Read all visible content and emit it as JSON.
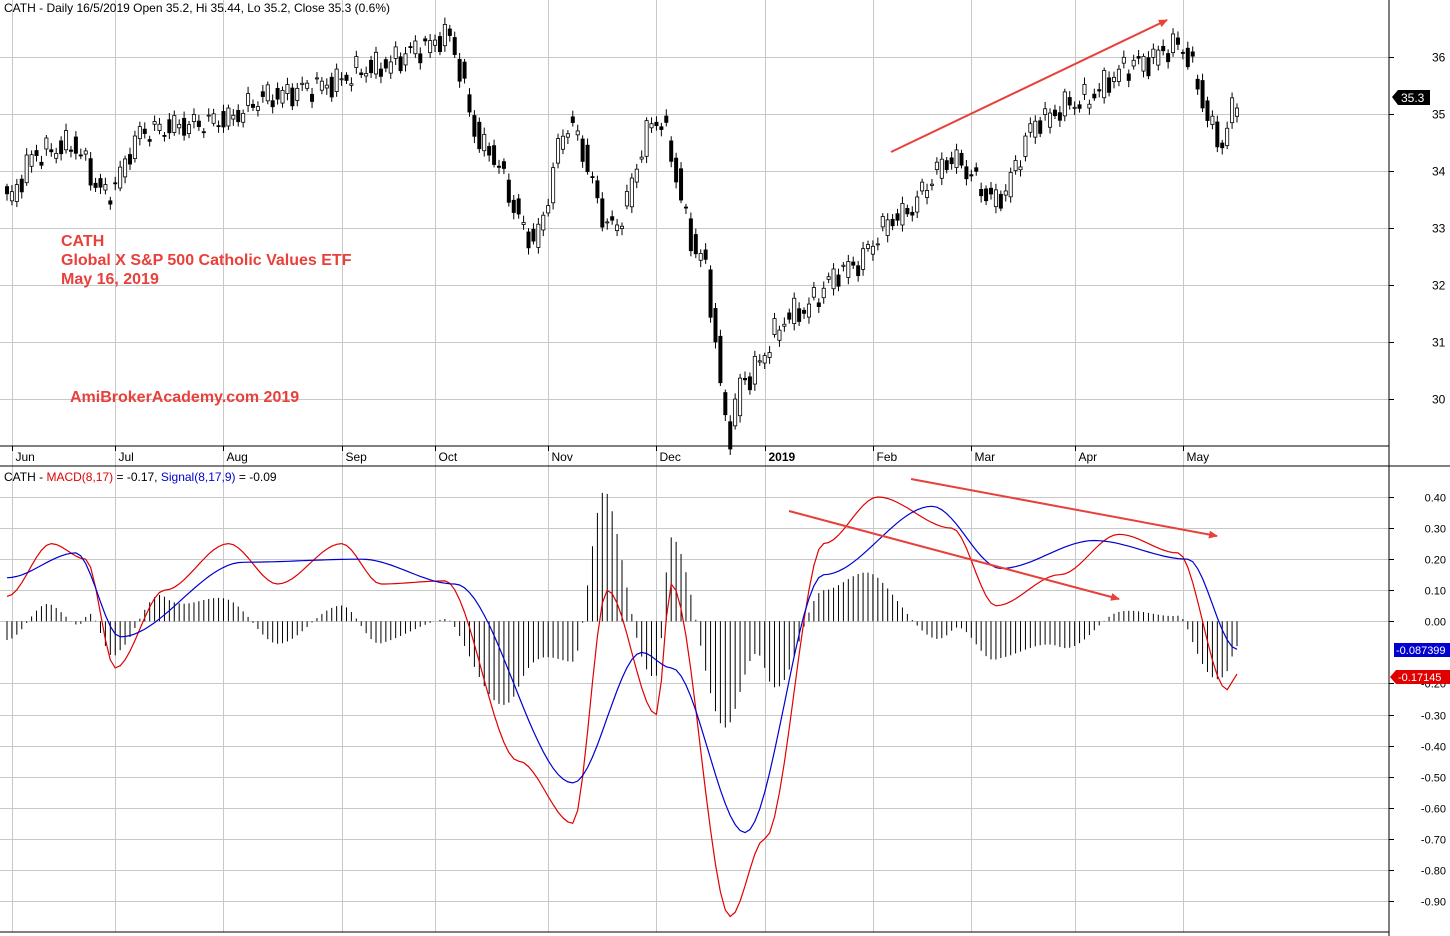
{
  "header": {
    "price_title": "CATH - Daily 16/5/2019 Open 35.2, Hi 35.44, Lo 35.2, Close 35.3 (0.6%)",
    "macd_symbol": "CATH - ",
    "macd_label": "MACD(8,17)",
    "macd_value": " = -0.17, ",
    "signal_label": "Signal(8,17,9)",
    "signal_value": " = -0.09"
  },
  "annotations": {
    "symbol": "CATH",
    "name": "Global X S&P 500 Catholic Values ETF",
    "date": "May 16, 2019",
    "watermark": "AmiBrokerAcademy.com 2019"
  },
  "colors": {
    "macd": "#e00000",
    "signal": "#0000d0",
    "histogram": "#000000",
    "arrow": "#e8403a",
    "grid": "#c8c8c8"
  },
  "chart_data": [
    {
      "type": "candlestick",
      "title": "CATH - Daily 16/5/2019 Open 35.2, Hi 35.44, Lo 35.2, Close 35.3 (0.6%)",
      "x_labels": [
        "Jun",
        "Jul",
        "Aug",
        "Sep",
        "Oct",
        "Nov",
        "Dec",
        "2019",
        "Feb",
        "Mar",
        "Apr",
        "May"
      ],
      "y_ticks": [
        30,
        31,
        32,
        33,
        34,
        35,
        36
      ],
      "ylim": [
        29.3,
        36.6
      ],
      "last_price_label": "35.3",
      "grid": true,
      "close_path": [
        {
          "date": "2018-05-31",
          "close": 33.5
        },
        {
          "date": "2018-06-08",
          "close": 34.3
        },
        {
          "date": "2018-06-19",
          "close": 34.45
        },
        {
          "date": "2018-06-28",
          "close": 33.6
        },
        {
          "date": "2018-07-10",
          "close": 34.7
        },
        {
          "date": "2018-07-20",
          "close": 34.8
        },
        {
          "date": "2018-08-01",
          "close": 34.9
        },
        {
          "date": "2018-08-14",
          "close": 35.3
        },
        {
          "date": "2018-08-29",
          "close": 35.5
        },
        {
          "date": "2018-09-12",
          "close": 35.8
        },
        {
          "date": "2018-09-28",
          "close": 36.2
        },
        {
          "date": "2018-10-03",
          "close": 36.4
        },
        {
          "date": "2018-10-15",
          "close": 34.4
        },
        {
          "date": "2018-10-29",
          "close": 32.8
        },
        {
          "date": "2018-11-07",
          "close": 34.8
        },
        {
          "date": "2018-11-20",
          "close": 33.0
        },
        {
          "date": "2018-12-03",
          "close": 34.9
        },
        {
          "date": "2018-12-14",
          "close": 32.5
        },
        {
          "date": "2018-12-24",
          "close": 29.4
        },
        {
          "date": "2018-12-26",
          "close": 30.3
        },
        {
          "date": "2019-01-10",
          "close": 31.5
        },
        {
          "date": "2019-01-25",
          "close": 32.3
        },
        {
          "date": "2019-02-08",
          "close": 33.2
        },
        {
          "date": "2019-02-25",
          "close": 34.2
        },
        {
          "date": "2019-03-08",
          "close": 33.5
        },
        {
          "date": "2019-03-21",
          "close": 34.9
        },
        {
          "date": "2019-04-01",
          "close": 35.2
        },
        {
          "date": "2019-04-18",
          "close": 35.9
        },
        {
          "date": "2019-04-30",
          "close": 36.2
        },
        {
          "date": "2019-05-13",
          "close": 34.5
        },
        {
          "date": "2019-05-16",
          "close": 35.3
        }
      ]
    },
    {
      "type": "line",
      "title": "CATH - MACD(8,17) = -0.17, Signal(8,17,9) = -0.09",
      "y_ticks": [
        0.4,
        0.3,
        0.2,
        0.1,
        0.0,
        -0.2,
        -0.3,
        -0.4,
        -0.5,
        -0.6,
        -0.7,
        -0.8,
        -0.9
      ],
      "ylim": [
        -0.98,
        0.48
      ],
      "macd_readout": "-0.17145",
      "signal_readout": "-0.087399",
      "series": [
        {
          "name": "MACD(8,17)",
          "values": [
            {
              "date": "2018-05-31",
              "v": 0.08
            },
            {
              "date": "2018-06-13",
              "v": 0.25
            },
            {
              "date": "2018-06-22",
              "v": 0.2
            },
            {
              "date": "2018-07-02",
              "v": -0.15
            },
            {
              "date": "2018-07-16",
              "v": 0.1
            },
            {
              "date": "2018-08-02",
              "v": 0.25
            },
            {
              "date": "2018-08-16",
              "v": 0.12
            },
            {
              "date": "2018-09-04",
              "v": 0.25
            },
            {
              "date": "2018-09-14",
              "v": 0.12
            },
            {
              "date": "2018-10-03",
              "v": 0.13
            },
            {
              "date": "2018-10-24",
              "v": -0.45
            },
            {
              "date": "2018-11-08",
              "v": -0.65
            },
            {
              "date": "2018-11-19",
              "v": 0.1
            },
            {
              "date": "2018-12-03",
              "v": -0.3
            },
            {
              "date": "2018-12-06",
              "v": 0.12
            },
            {
              "date": "2018-12-24",
              "v": -0.95
            },
            {
              "date": "2019-01-02",
              "v": -0.7
            },
            {
              "date": "2019-01-18",
              "v": 0.25
            },
            {
              "date": "2019-02-04",
              "v": 0.4
            },
            {
              "date": "2019-02-25",
              "v": 0.3
            },
            {
              "date": "2019-03-08",
              "v": 0.05
            },
            {
              "date": "2019-03-27",
              "v": 0.15
            },
            {
              "date": "2019-04-12",
              "v": 0.28
            },
            {
              "date": "2019-04-30",
              "v": 0.22
            },
            {
              "date": "2019-05-14",
              "v": -0.22
            },
            {
              "date": "2019-05-16",
              "v": -0.17
            }
          ]
        },
        {
          "name": "Signal(8,17,9)",
          "values": [
            {
              "date": "2018-05-31",
              "v": 0.14
            },
            {
              "date": "2018-06-20",
              "v": 0.22
            },
            {
              "date": "2018-07-03",
              "v": -0.05
            },
            {
              "date": "2018-08-07",
              "v": 0.19
            },
            {
              "date": "2018-09-10",
              "v": 0.2
            },
            {
              "date": "2018-10-05",
              "v": 0.12
            },
            {
              "date": "2018-11-08",
              "v": -0.52
            },
            {
              "date": "2018-11-28",
              "v": -0.1
            },
            {
              "date": "2018-12-06",
              "v": -0.15
            },
            {
              "date": "2018-12-27",
              "v": -0.68
            },
            {
              "date": "2019-01-18",
              "v": 0.15
            },
            {
              "date": "2019-02-19",
              "v": 0.37
            },
            {
              "date": "2019-03-11",
              "v": 0.17
            },
            {
              "date": "2019-04-05",
              "v": 0.26
            },
            {
              "date": "2019-05-02",
              "v": 0.2
            },
            {
              "date": "2019-05-16",
              "v": -0.09
            }
          ]
        }
      ]
    }
  ]
}
